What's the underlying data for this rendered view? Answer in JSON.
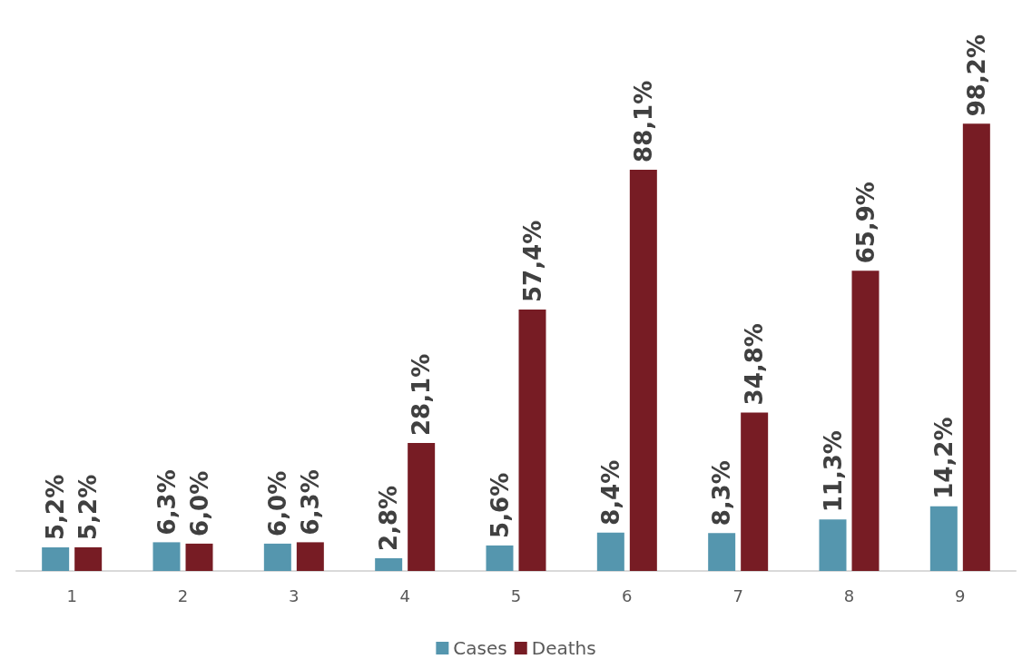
{
  "chart_data": {
    "type": "bar",
    "categories": [
      "1",
      "2",
      "3",
      "4",
      "5",
      "6",
      "7",
      "8",
      "9"
    ],
    "series": [
      {
        "name": "Cases",
        "color": "#5596ae",
        "values": [
          5.2,
          6.3,
          6.0,
          2.8,
          5.6,
          8.4,
          8.3,
          11.3,
          14.2
        ],
        "value_labels": [
          "5,2%",
          "6,3%",
          "6,0%",
          "2,8%",
          "5,6%",
          "8,4%",
          "8,3%",
          "11,3%",
          "14,2%"
        ]
      },
      {
        "name": "Deaths",
        "color": "#771c24",
        "values": [
          5.2,
          6.0,
          6.3,
          28.1,
          57.4,
          88.1,
          34.8,
          65.9,
          98.2
        ],
        "value_labels": [
          "5,2%",
          "6,0%",
          "6,3%",
          "28,1%",
          "57,4%",
          "88,1%",
          "34,8%",
          "65,9%",
          "98,2%"
        ]
      }
    ],
    "legend": "bottom"
  }
}
